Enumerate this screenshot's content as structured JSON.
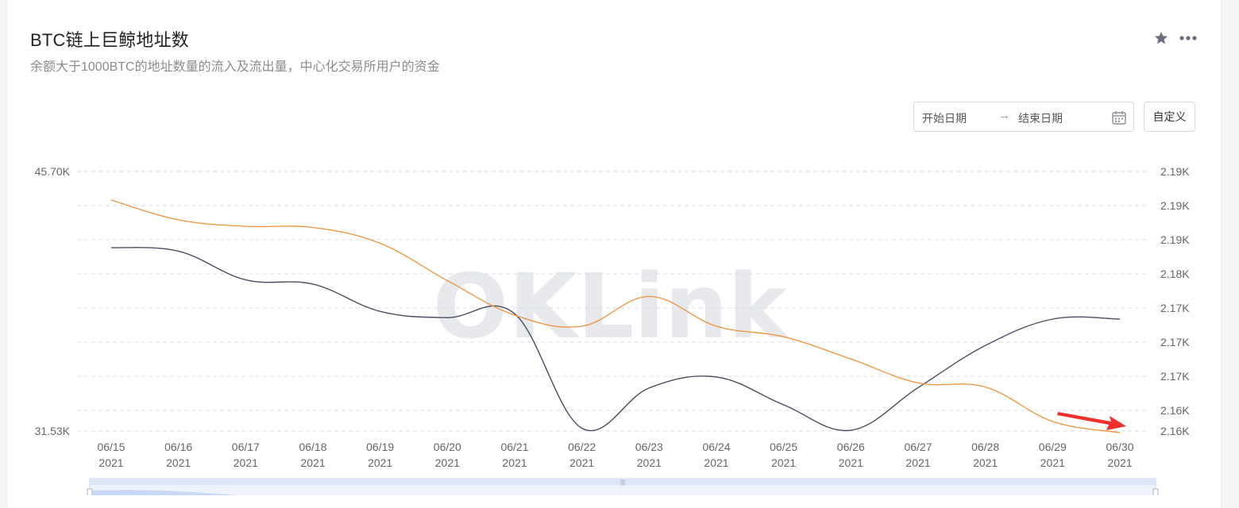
{
  "header": {
    "title": "BTC链上巨鲸地址数",
    "subtitle": "余额大于1000BTC的地址数量的流入及流出量，中心化交易所用户的资金"
  },
  "controls": {
    "start_placeholder": "开始日期",
    "arrow": "→",
    "end_placeholder": "结束日期",
    "custom_label": "自定义"
  },
  "watermark": "OKLink",
  "colors": {
    "dark_series": "#4a4e62",
    "orange_series": "#f0923a",
    "grid": "#d9dde4",
    "arrow": "#f0302a"
  },
  "chart_data": {
    "type": "line",
    "categories": [
      "06/15\n2021",
      "06/16\n2021",
      "06/17\n2021",
      "06/18\n2021",
      "06/19\n2021",
      "06/20\n2021",
      "06/21\n2021",
      "06/22\n2021",
      "06/23\n2021",
      "06/24\n2021",
      "06/25\n2021",
      "06/26\n2021",
      "06/27\n2021",
      "06/28\n2021",
      "06/29\n2021",
      "06/30\n2021"
    ],
    "x_tick_dates": [
      "06/15",
      "06/16",
      "06/17",
      "06/18",
      "06/19",
      "06/20",
      "06/21",
      "06/22",
      "06/23",
      "06/24",
      "06/25",
      "06/26",
      "06/27",
      "06/28",
      "06/29",
      "06/30"
    ],
    "x_tick_years": [
      "2021",
      "2021",
      "2021",
      "2021",
      "2021",
      "2021",
      "2021",
      "2021",
      "2021",
      "2021",
      "2021",
      "2021",
      "2021",
      "2021",
      "2021",
      "2021"
    ],
    "left_axis": {
      "ylim": [
        31530,
        45700
      ],
      "min_label": "31.53K",
      "max_label": "45.70K"
    },
    "right_axis": {
      "tick_labels": [
        "2.19K",
        "2.19K",
        "2.19K",
        "2.18K",
        "2.17K",
        "2.17K",
        "2.17K",
        "2.16K",
        "2.16K"
      ]
    },
    "series": [
      {
        "axis": "left",
        "color": "#4a4e62",
        "values": [
          41540,
          41350,
          39780,
          39550,
          38060,
          37720,
          37930,
          31680,
          33880,
          34480,
          32960,
          31570,
          33900,
          36200,
          37640,
          37640
        ]
      },
      {
        "axis": "right",
        "color": "#f0923a",
        "values": [
          2190.6,
          2187.2,
          2186.1,
          2185.9,
          2183.2,
          2176.8,
          2170.9,
          2169.0,
          2174.1,
          2169.0,
          2167.2,
          2163.4,
          2159.3,
          2158.6,
          2152.7,
          2150.8
        ]
      }
    ]
  }
}
